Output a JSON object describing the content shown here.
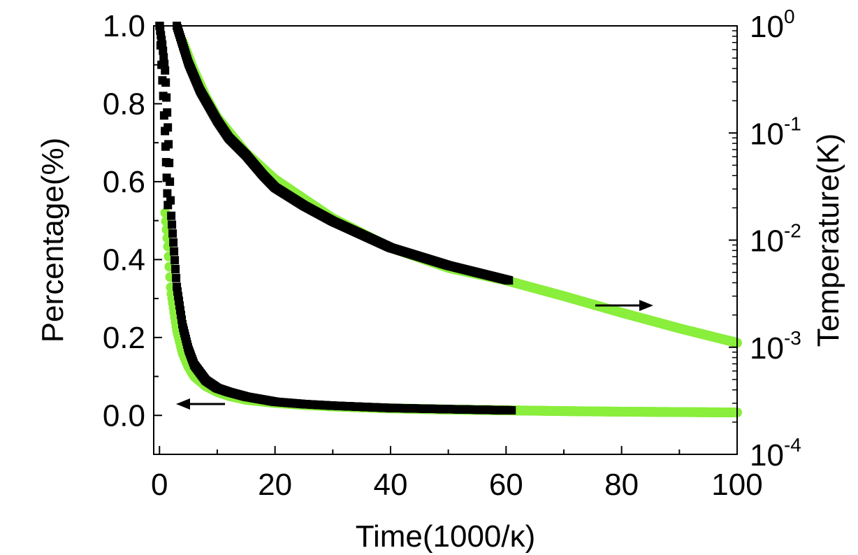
{
  "chart_data": {
    "type": "scatter",
    "xlabel": "Time(1000/κ)",
    "ylabel_left": "Percentage(%)",
    "ylabel_right": "Temperature(K)",
    "xlim": [
      -1,
      100
    ],
    "ylim_left": [
      -0.1,
      1.0
    ],
    "ylim_right": [
      0.0001,
      1
    ],
    "y_right_scale": "log",
    "x_ticks": [
      0,
      20,
      40,
      60,
      80,
      100
    ],
    "x_tick_labels": [
      "0",
      "20",
      "40",
      "60",
      "80",
      "100"
    ],
    "y_left_ticks": [
      0.0,
      0.2,
      0.4,
      0.6,
      0.8,
      1.0
    ],
    "y_left_tick_labels": [
      "0.0",
      "0.2",
      "0.4",
      "0.6",
      "0.8",
      "1.0"
    ],
    "y_right_ticks": [
      {
        "value": 1,
        "base": "10",
        "exp": "0"
      },
      {
        "value": 0.1,
        "base": "10",
        "exp": "-1"
      },
      {
        "value": 0.01,
        "base": "10",
        "exp": "-2"
      },
      {
        "value": 0.001,
        "base": "10",
        "exp": "-3"
      },
      {
        "value": 0.0001,
        "base": "10",
        "exp": "-4"
      }
    ],
    "grid": false,
    "legend": "none",
    "series": [
      {
        "axis": "left",
        "color": "#000000",
        "marker": "square",
        "x": [
          0,
          0.5,
          1,
          1.5,
          2,
          3,
          4,
          5,
          6,
          8,
          10,
          12,
          15,
          20,
          25,
          30,
          40,
          50,
          61
        ],
        "y": [
          1.0,
          0.95,
          0.88,
          0.72,
          0.52,
          0.33,
          0.23,
          0.17,
          0.13,
          0.09,
          0.07,
          0.06,
          0.048,
          0.035,
          0.029,
          0.025,
          0.019,
          0.016,
          0.013
        ]
      },
      {
        "axis": "left",
        "color": "#8aee3c",
        "marker": "circle",
        "x": [
          1,
          1.5,
          2,
          3,
          4,
          5,
          6,
          8,
          10,
          12,
          15,
          20,
          25,
          30,
          40,
          50,
          60,
          70,
          80,
          90,
          100
        ],
        "y": [
          0.52,
          0.43,
          0.32,
          0.22,
          0.16,
          0.125,
          0.1,
          0.075,
          0.06,
          0.05,
          0.04,
          0.032,
          0.027,
          0.023,
          0.018,
          0.015,
          0.013,
          0.011,
          0.0095,
          0.0085,
          0.0075
        ]
      },
      {
        "axis": "right",
        "color": "#000000",
        "marker": "square",
        "x": [
          3,
          5,
          7,
          10,
          12,
          15,
          18,
          20,
          25,
          30,
          40,
          50,
          60.5
        ],
        "y": [
          1.0,
          0.45,
          0.25,
          0.13,
          0.09,
          0.062,
          0.04,
          0.031,
          0.021,
          0.015,
          0.0085,
          0.0058,
          0.0042
        ]
      },
      {
        "axis": "right",
        "color": "#8aee3c",
        "marker": "circle",
        "x": [
          4,
          6,
          8,
          10,
          15,
          20,
          30,
          40,
          50,
          60,
          70,
          80,
          90,
          100
        ],
        "y": [
          0.72,
          0.38,
          0.22,
          0.14,
          0.065,
          0.037,
          0.016,
          0.0085,
          0.0055,
          0.0042,
          0.003,
          0.0021,
          0.0015,
          0.0011
        ]
      }
    ]
  }
}
